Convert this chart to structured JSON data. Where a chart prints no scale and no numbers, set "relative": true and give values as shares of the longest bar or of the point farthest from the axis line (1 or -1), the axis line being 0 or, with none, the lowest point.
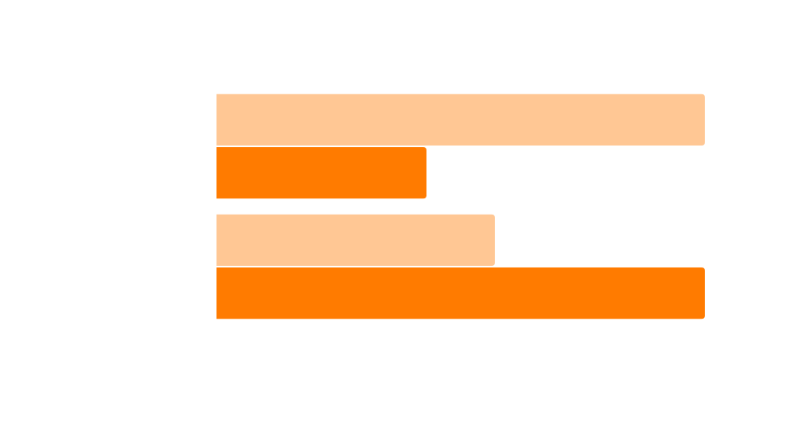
{
  "chart_data": {
    "type": "bar",
    "orientation": "horizontal",
    "relative": true,
    "categories": [
      null,
      null
    ],
    "series": [
      {
        "color": "#ffc794",
        "values": [
          1,
          0.57
        ]
      },
      {
        "color": "#ff7b00",
        "values": [
          0.43,
          1
        ]
      }
    ],
    "legend": false
  }
}
